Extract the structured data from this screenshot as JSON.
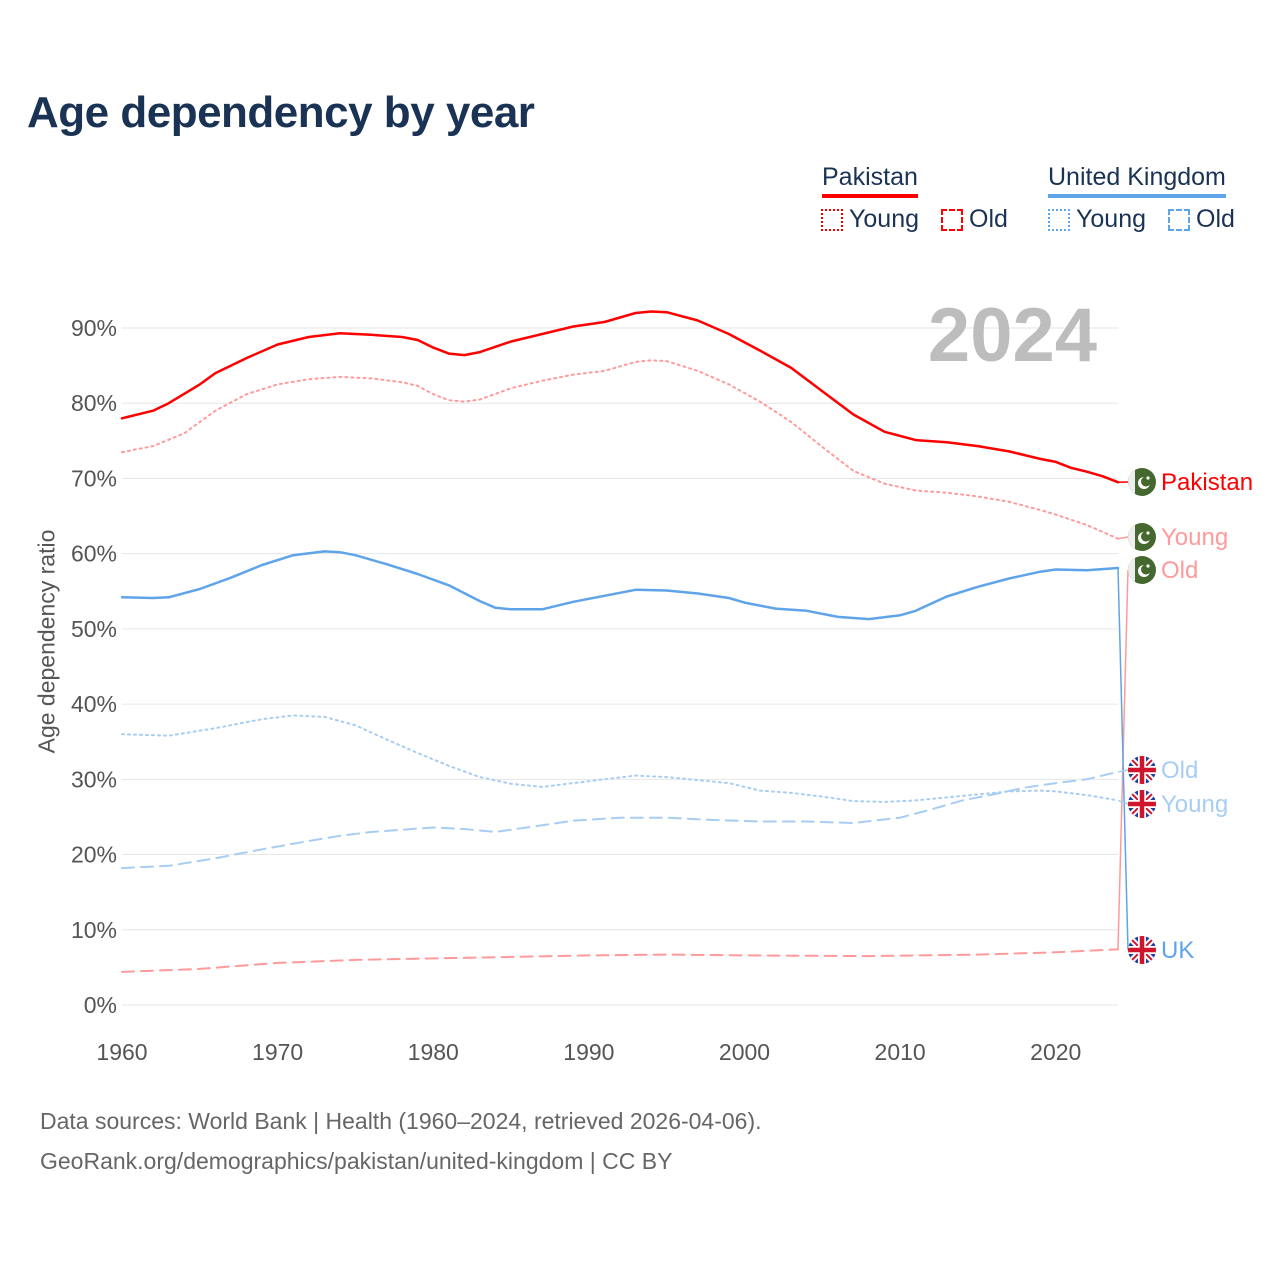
{
  "title": "Age dependency by year",
  "year_badge": "2024",
  "legend": {
    "groups": [
      {
        "name": "Pakistan",
        "color": "#ff0000",
        "items": [
          "Young",
          "Old"
        ]
      },
      {
        "name": "United Kingdom",
        "color": "#5fa4e8",
        "items": [
          "Young",
          "Old"
        ]
      }
    ]
  },
  "footer": {
    "line1": "Data sources: World Bank | Health (1960–2024, retrieved 2026-04-06).",
    "line2": "GeoRank.org/demographics/pakistan/united-kingdom | CC BY"
  },
  "chart_data": {
    "type": "line",
    "title": "Age dependency by year",
    "xlabel": "",
    "ylabel": "Age dependency ratio",
    "xlim": [
      1960,
      2024
    ],
    "ylim": [
      0,
      90
    ],
    "x_ticks": [
      "1960",
      "1970",
      "1980",
      "1990",
      "2000",
      "2010",
      "2020"
    ],
    "y_ticks": [
      "0%",
      "10%",
      "20%",
      "30%",
      "40%",
      "50%",
      "60%",
      "70%",
      "80%",
      "90%"
    ],
    "grid": true,
    "series": [
      {
        "name": "Pakistan",
        "end_label": "Pakistan",
        "flag": "pakistan-flag",
        "color": "#ff0000",
        "style": "solid",
        "points": [
          [
            1960,
            78
          ],
          [
            1962,
            79
          ],
          [
            1963,
            80
          ],
          [
            1965,
            82.5
          ],
          [
            1966,
            84
          ],
          [
            1968,
            86
          ],
          [
            1970,
            87.8
          ],
          [
            1972,
            88.8
          ],
          [
            1974,
            89.3
          ],
          [
            1976,
            89.1
          ],
          [
            1978,
            88.8
          ],
          [
            1979,
            88.4
          ],
          [
            1980,
            87.4
          ],
          [
            1981,
            86.6
          ],
          [
            1982,
            86.4
          ],
          [
            1983,
            86.8
          ],
          [
            1985,
            88.2
          ],
          [
            1987,
            89.2
          ],
          [
            1989,
            90.2
          ],
          [
            1991,
            90.8
          ],
          [
            1993,
            92
          ],
          [
            1994,
            92.2
          ],
          [
            1995,
            92.1
          ],
          [
            1997,
            91
          ],
          [
            1999,
            89.2
          ],
          [
            2001,
            87
          ],
          [
            2003,
            84.7
          ],
          [
            2005,
            81.6
          ],
          [
            2007,
            78.5
          ],
          [
            2009,
            76.2
          ],
          [
            2011,
            75.1
          ],
          [
            2013,
            74.8
          ],
          [
            2015,
            74.3
          ],
          [
            2017,
            73.6
          ],
          [
            2019,
            72.6
          ],
          [
            2020,
            72.2
          ],
          [
            2021,
            71.4
          ],
          [
            2022,
            70.9
          ],
          [
            2023,
            70.3
          ],
          [
            2024,
            69.5
          ]
        ]
      },
      {
        "name": "Pakistan Young",
        "end_label": "Young",
        "flag": "pakistan-flag",
        "color": "#ff9a9a",
        "style": "dotted",
        "points": [
          [
            1960,
            73.5
          ],
          [
            1962,
            74.3
          ],
          [
            1964,
            76
          ],
          [
            1966,
            79
          ],
          [
            1968,
            81.2
          ],
          [
            1970,
            82.5
          ],
          [
            1972,
            83.2
          ],
          [
            1974,
            83.5
          ],
          [
            1976,
            83.3
          ],
          [
            1978,
            82.8
          ],
          [
            1979,
            82.3
          ],
          [
            1980,
            81.2
          ],
          [
            1981,
            80.4
          ],
          [
            1982,
            80.2
          ],
          [
            1983,
            80.5
          ],
          [
            1985,
            82
          ],
          [
            1987,
            83
          ],
          [
            1989,
            83.8
          ],
          [
            1991,
            84.3
          ],
          [
            1993,
            85.5
          ],
          [
            1994,
            85.7
          ],
          [
            1995,
            85.6
          ],
          [
            1997,
            84.3
          ],
          [
            1999,
            82.5
          ],
          [
            2001,
            80.2
          ],
          [
            2003,
            77.5
          ],
          [
            2005,
            74.2
          ],
          [
            2007,
            71
          ],
          [
            2009,
            69.3
          ],
          [
            2011,
            68.4
          ],
          [
            2013,
            68.1
          ],
          [
            2015,
            67.6
          ],
          [
            2017,
            66.9
          ],
          [
            2019,
            65.8
          ],
          [
            2020,
            65.2
          ],
          [
            2022,
            63.8
          ],
          [
            2024,
            62
          ]
        ]
      },
      {
        "name": "Pakistan Old",
        "end_label": "Old",
        "flag": "pakistan-flag",
        "color": "#ff9a9a",
        "style": "dashed",
        "points": [
          [
            1960,
            4.4
          ],
          [
            1965,
            4.8
          ],
          [
            1970,
            5.6
          ],
          [
            1975,
            6
          ],
          [
            1980,
            6.2
          ],
          [
            1985,
            6.4
          ],
          [
            1990,
            6.6
          ],
          [
            1995,
            6.7
          ],
          [
            2000,
            6.6
          ],
          [
            2008,
            6.5
          ],
          [
            2015,
            6.7
          ],
          [
            2020,
            7
          ],
          [
            2024,
            7.4
          ]
        ]
      },
      {
        "name": "United Kingdom",
        "end_label": "UK",
        "flag": "uk-flag",
        "color": "#5fa4e8",
        "style": "solid",
        "points": [
          [
            1960,
            54.2
          ],
          [
            1962,
            54.1
          ],
          [
            1963,
            54.2
          ],
          [
            1965,
            55.3
          ],
          [
            1967,
            56.8
          ],
          [
            1969,
            58.5
          ],
          [
            1971,
            59.8
          ],
          [
            1973,
            60.3
          ],
          [
            1974,
            60.2
          ],
          [
            1975,
            59.8
          ],
          [
            1977,
            58.6
          ],
          [
            1979,
            57.3
          ],
          [
            1981,
            55.8
          ],
          [
            1983,
            53.7
          ],
          [
            1984,
            52.8
          ],
          [
            1985,
            52.6
          ],
          [
            1987,
            52.6
          ],
          [
            1989,
            53.6
          ],
          [
            1991,
            54.4
          ],
          [
            1993,
            55.2
          ],
          [
            1995,
            55.1
          ],
          [
            1997,
            54.7
          ],
          [
            1999,
            54.1
          ],
          [
            2000,
            53.5
          ],
          [
            2002,
            52.7
          ],
          [
            2004,
            52.4
          ],
          [
            2006,
            51.6
          ],
          [
            2008,
            51.3
          ],
          [
            2010,
            51.8
          ],
          [
            2011,
            52.4
          ],
          [
            2013,
            54.3
          ],
          [
            2015,
            55.6
          ],
          [
            2017,
            56.7
          ],
          [
            2019,
            57.6
          ],
          [
            2020,
            57.9
          ],
          [
            2022,
            57.8
          ],
          [
            2024,
            58.1
          ]
        ]
      },
      {
        "name": "United Kingdom Young",
        "end_label": "Young",
        "flag": "uk-flag",
        "color": "#a8cdf3",
        "style": "dotted",
        "points": [
          [
            1960,
            36
          ],
          [
            1963,
            35.8
          ],
          [
            1966,
            36.8
          ],
          [
            1969,
            38
          ],
          [
            1971,
            38.5
          ],
          [
            1973,
            38.3
          ],
          [
            1975,
            37.2
          ],
          [
            1977,
            35.3
          ],
          [
            1979,
            33.5
          ],
          [
            1981,
            31.8
          ],
          [
            1983,
            30.3
          ],
          [
            1985,
            29.4
          ],
          [
            1987,
            29
          ],
          [
            1989,
            29.5
          ],
          [
            1991,
            30
          ],
          [
            1993,
            30.5
          ],
          [
            1995,
            30.3
          ],
          [
            1997,
            29.9
          ],
          [
            1999,
            29.5
          ],
          [
            2001,
            28.5
          ],
          [
            2003,
            28.2
          ],
          [
            2005,
            27.7
          ],
          [
            2007,
            27.1
          ],
          [
            2009,
            27
          ],
          [
            2011,
            27.2
          ],
          [
            2013,
            27.6
          ],
          [
            2015,
            28
          ],
          [
            2017,
            28.4
          ],
          [
            2019,
            28.5
          ],
          [
            2020,
            28.4
          ],
          [
            2022,
            27.9
          ],
          [
            2024,
            27.2
          ]
        ]
      },
      {
        "name": "United Kingdom Old",
        "end_label": "Old",
        "flag": "uk-flag",
        "color": "#a8cdf3",
        "style": "dashed",
        "points": [
          [
            1960,
            18.2
          ],
          [
            1963,
            18.5
          ],
          [
            1966,
            19.5
          ],
          [
            1969,
            20.7
          ],
          [
            1972,
            21.8
          ],
          [
            1974,
            22.5
          ],
          [
            1976,
            23
          ],
          [
            1978,
            23.3
          ],
          [
            1980,
            23.6
          ],
          [
            1982,
            23.4
          ],
          [
            1984,
            23
          ],
          [
            1986,
            23.6
          ],
          [
            1989,
            24.5
          ],
          [
            1992,
            24.9
          ],
          [
            1995,
            24.9
          ],
          [
            1998,
            24.6
          ],
          [
            2001,
            24.4
          ],
          [
            2004,
            24.4
          ],
          [
            2007,
            24.2
          ],
          [
            2010,
            24.9
          ],
          [
            2012,
            26
          ],
          [
            2014,
            27.2
          ],
          [
            2016,
            28
          ],
          [
            2018,
            28.9
          ],
          [
            2020,
            29.5
          ],
          [
            2022,
            30
          ],
          [
            2024,
            31
          ]
        ]
      }
    ]
  }
}
